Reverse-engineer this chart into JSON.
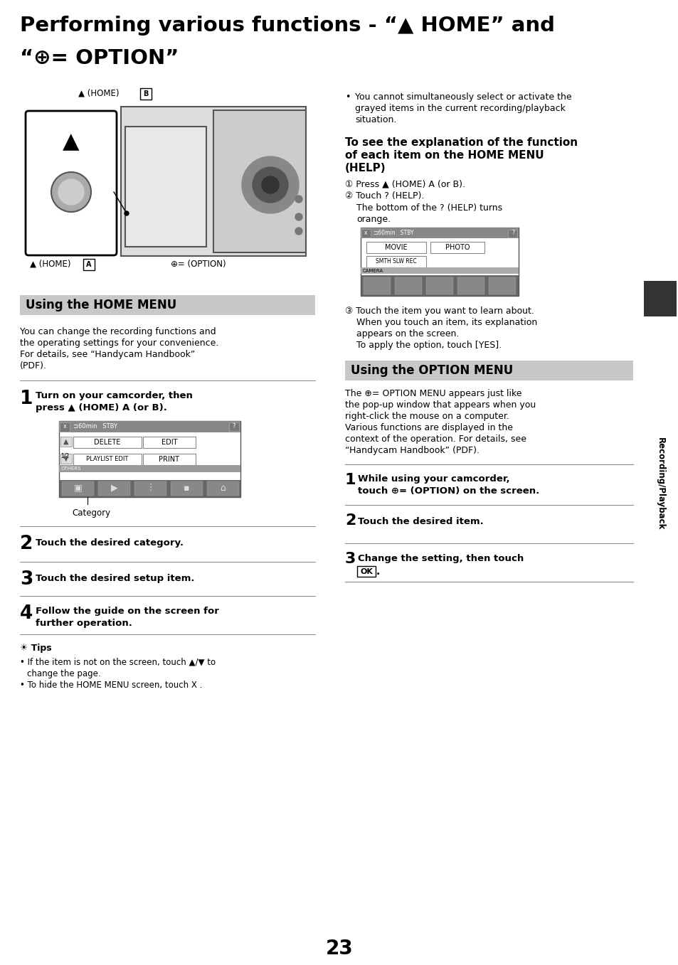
{
  "bg_color": "#ffffff",
  "page_number": "23",
  "title_line1": "Performing various functions - “▲ HOME” and",
  "title_line2": "“⊕= OPTION”",
  "section1_header": "Using the HOME MENU",
  "section1_body_lines": [
    "You can change the recording functions and",
    "the operating settings for your convenience.",
    "For details, see “Handycam Handbook”",
    "(PDF)."
  ],
  "step1_text_line1": "Turn on your camcorder, then",
  "step1_text_line2": "press ▲ (HOME) Â (or Â).",
  "step2_text": "Touch the desired category.",
  "step3_text": "Touch the desired setup item.",
  "step4_text_line1": "Follow the guide on the screen for",
  "step4_text_line2": "further operation.",
  "tips_title": "Tips",
  "tips_line1": "• If the item is not on the screen, touch ▲/▼ to",
  "tips_line1b": "change the page.",
  "tips_line2": "• To hide the HOME MENU screen, touch X .",
  "bullet_text_lines": [
    "You cannot simultaneously select or activate the",
    "grayed items in the current recording/playback",
    "situation."
  ],
  "help_heading_lines": [
    "To see the explanation of the function",
    "of each item on the HOME MENU",
    "(HELP)"
  ],
  "help_step1": "① Press ▲ (HOME) A (or B).",
  "help_step2": "② Touch ? (HELP).",
  "help_step2b_line1": "The bottom of the ? (HELP) turns",
  "help_step2b_line2": "orange.",
  "help_step3_lines": [
    "③ Touch the item you want to learn about.",
    "When you touch an item, its explanation",
    "appears on the screen.",
    "To apply the option, touch [YES]."
  ],
  "section2_header": "Using the OPTION MENU",
  "section2_body_lines": [
    "The ⊕= OPTION MENU appears just like",
    "the pop-up window that appears when you",
    "right-click the mouse on a computer.",
    "Various functions are displayed in the",
    "context of the operation. For details, see",
    "“Handycam Handbook” (PDF)."
  ],
  "opt_step1_line1": "While using your camcorder,",
  "opt_step1_line2": "touch ⊕= (OPTION) on the screen.",
  "opt_step2_text": "Touch the desired item.",
  "opt_step3_line1": "Change the setting, then touch",
  "sidebar_text": "Recording/Playback",
  "sidebar_bg": "#333333",
  "header_bg": "#c8c8c8"
}
